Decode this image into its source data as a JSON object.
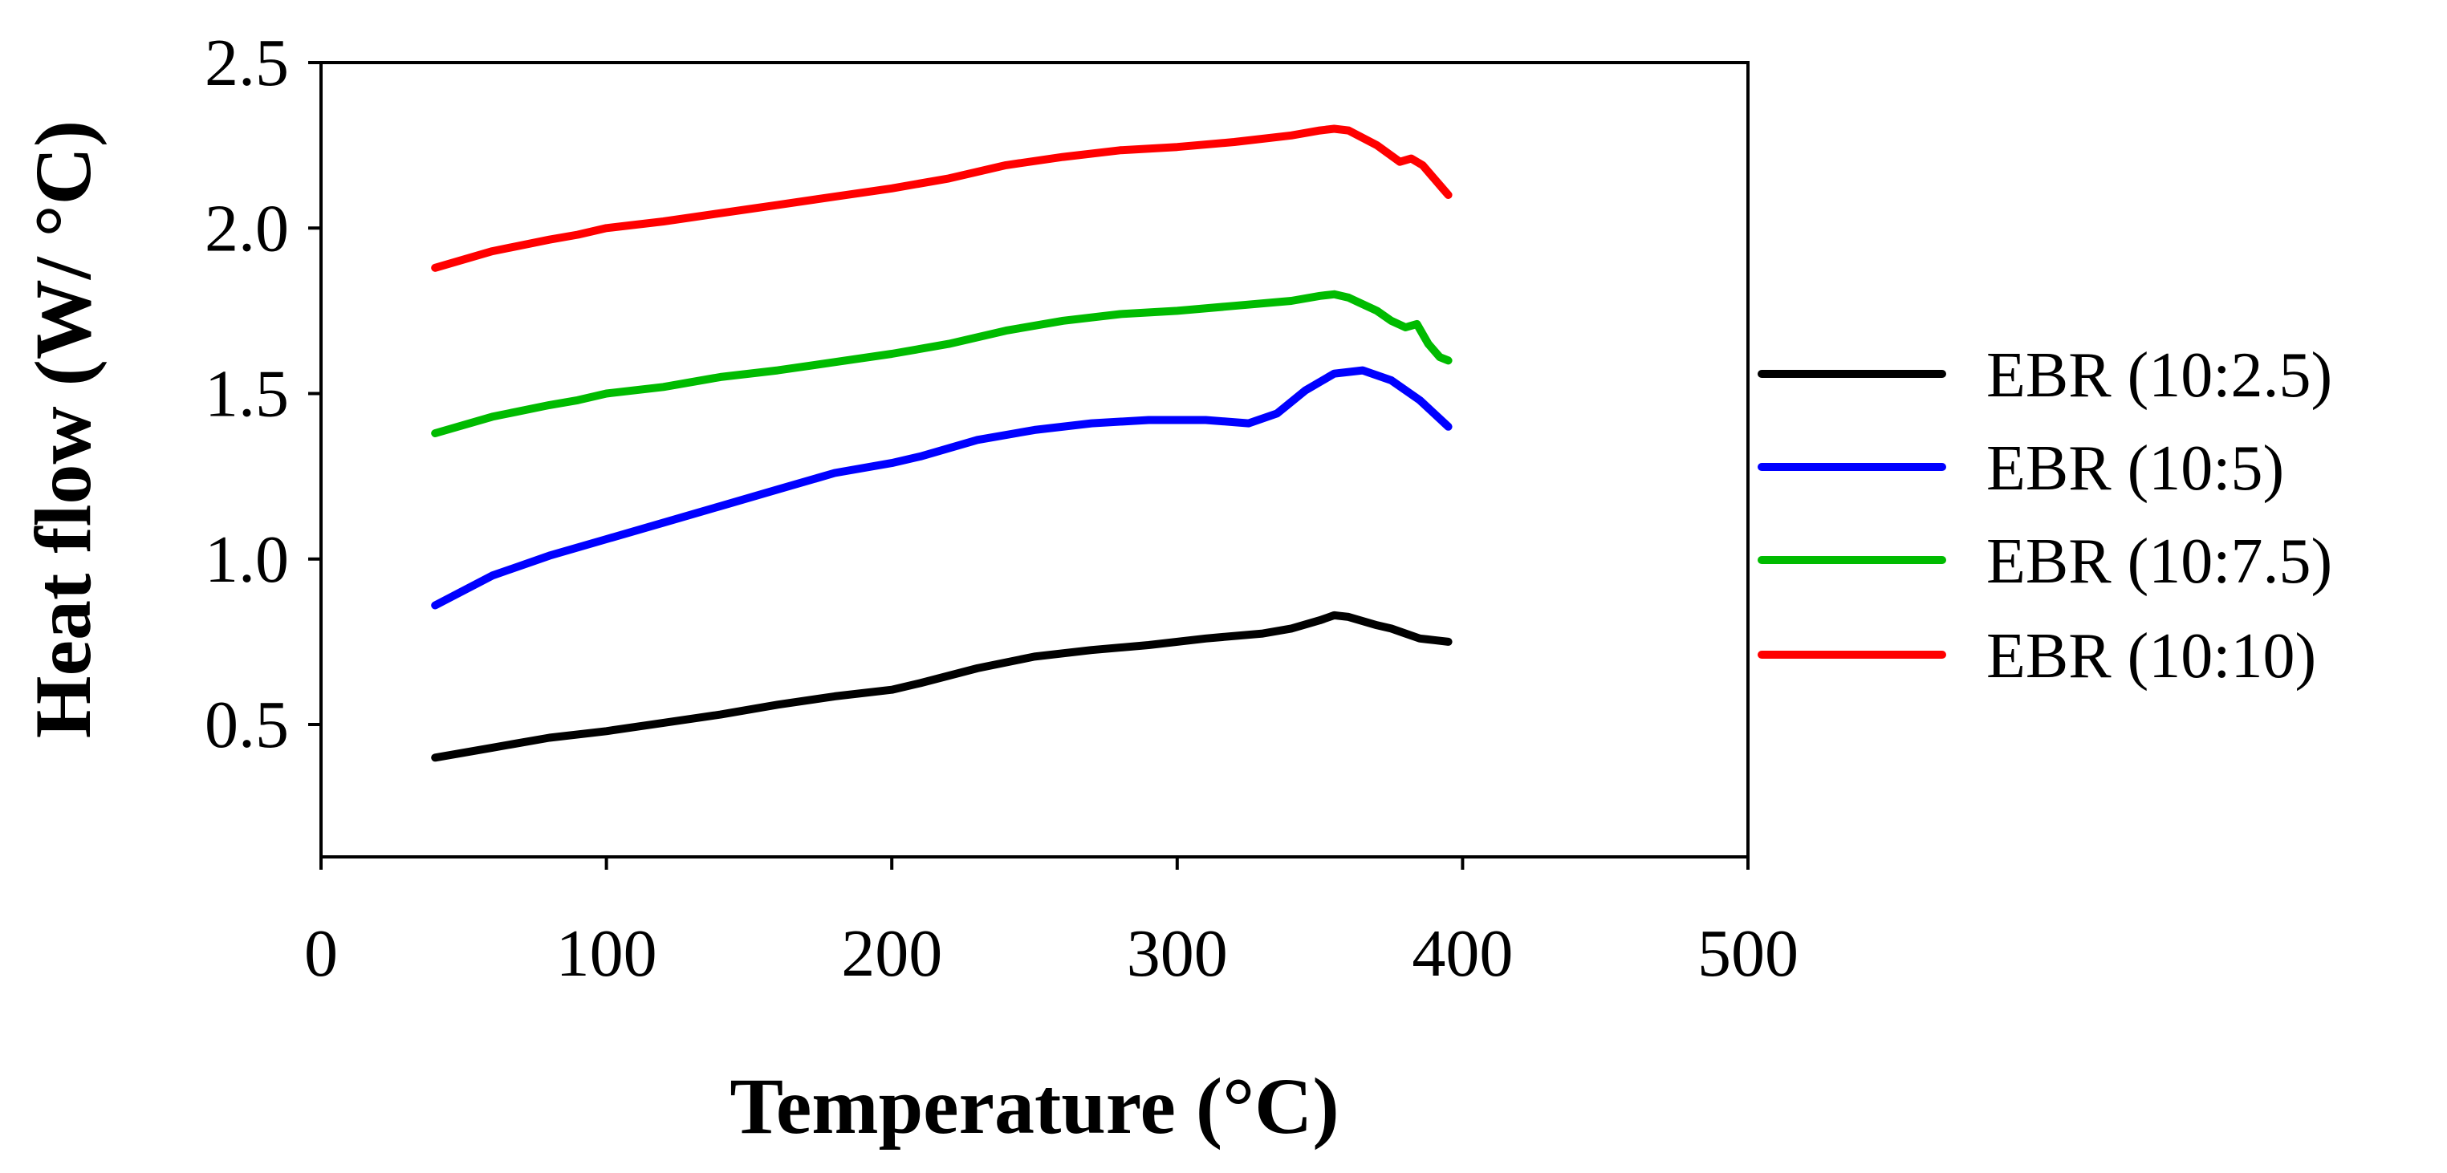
{
  "chart_data": {
    "type": "line",
    "title": "",
    "xlabel": "Temperature (°C)",
    "ylabel": "Heat flow (W/ °C)",
    "xlim": [
      0,
      500
    ],
    "ylim": [
      0.1,
      2.5
    ],
    "xticks": [
      0,
      100,
      200,
      300,
      400,
      500
    ],
    "xtick_labels": [
      "0",
      "100",
      "200",
      "300",
      "400",
      "500"
    ],
    "yticks": [
      0.5,
      1.0,
      1.5,
      2.0,
      2.5
    ],
    "ytick_labels": [
      "0.5",
      "1.0",
      "1.5",
      "2.0",
      "2.5"
    ],
    "grid": false,
    "legend_position": "right",
    "series": [
      {
        "name": "EBR (10:2.5)",
        "color": "#000000",
        "x": [
          40,
          60,
          80,
          100,
          120,
          140,
          160,
          180,
          200,
          210,
          230,
          250,
          270,
          290,
          310,
          330,
          340,
          350,
          355,
          360,
          370,
          375,
          380,
          385,
          390,
          395
        ],
        "y": [
          0.4,
          0.43,
          0.46,
          0.48,
          0.505,
          0.53,
          0.56,
          0.585,
          0.605,
          0.625,
          0.67,
          0.705,
          0.725,
          0.74,
          0.76,
          0.775,
          0.79,
          0.815,
          0.83,
          0.825,
          0.8,
          0.79,
          0.775,
          0.76,
          0.755,
          0.75
        ]
      },
      {
        "name": "EBR (10:5)",
        "color": "#0000ff",
        "x": [
          40,
          60,
          80,
          100,
          120,
          140,
          160,
          180,
          200,
          210,
          230,
          250,
          270,
          290,
          310,
          325,
          335,
          345,
          355,
          365,
          375,
          385,
          395
        ],
        "y": [
          0.86,
          0.95,
          1.01,
          1.06,
          1.11,
          1.16,
          1.21,
          1.26,
          1.29,
          1.31,
          1.36,
          1.39,
          1.41,
          1.42,
          1.42,
          1.41,
          1.44,
          1.51,
          1.56,
          1.57,
          1.54,
          1.48,
          1.4
        ]
      },
      {
        "name": "EBR (10:7.5)",
        "color": "#00bb00",
        "x": [
          40,
          60,
          80,
          90,
          100,
          120,
          140,
          160,
          180,
          200,
          220,
          240,
          260,
          280,
          300,
          320,
          340,
          350,
          355,
          360,
          370,
          375,
          380,
          384,
          388,
          392,
          395
        ],
        "y": [
          1.38,
          1.43,
          1.465,
          1.48,
          1.5,
          1.52,
          1.55,
          1.57,
          1.595,
          1.62,
          1.65,
          1.69,
          1.72,
          1.74,
          1.75,
          1.765,
          1.78,
          1.795,
          1.8,
          1.79,
          1.75,
          1.72,
          1.7,
          1.71,
          1.65,
          1.61,
          1.6
        ]
      },
      {
        "name": "EBR (10:10)",
        "color": "#ff0000",
        "x": [
          40,
          60,
          80,
          90,
          100,
          120,
          140,
          160,
          180,
          200,
          220,
          240,
          260,
          280,
          300,
          320,
          340,
          350,
          355,
          360,
          370,
          378,
          382,
          386,
          390,
          393,
          395
        ],
        "y": [
          1.88,
          1.93,
          1.965,
          1.98,
          2.0,
          2.02,
          2.045,
          2.07,
          2.095,
          2.12,
          2.15,
          2.19,
          2.215,
          2.235,
          2.245,
          2.26,
          2.28,
          2.295,
          2.3,
          2.295,
          2.25,
          2.2,
          2.21,
          2.19,
          2.15,
          2.12,
          2.1
        ]
      }
    ]
  }
}
